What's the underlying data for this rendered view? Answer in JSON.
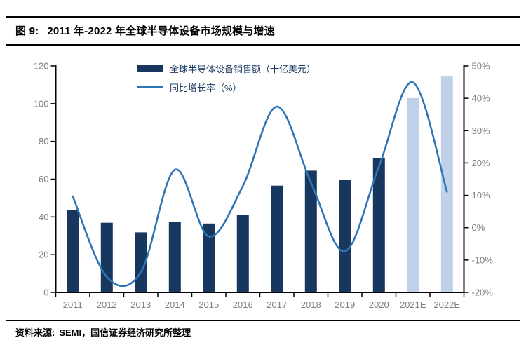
{
  "header": {
    "figure_label": "图 9:",
    "title": "2011 年-2022 年全球半导体设备市场规模与增速"
  },
  "legend": {
    "bar_label": "全球半导体设备销售额（十亿美元）",
    "line_label": "同比增长率（%）"
  },
  "footer": {
    "source_label": "资料来源:",
    "source_text": "SEMI，国信证券经济研究所整理"
  },
  "chart_data": {
    "type": "bar+line",
    "title": "2011 年-2022 年全球半导体设备市场规模与增速",
    "categories": [
      "2011",
      "2012",
      "2013",
      "2014",
      "2015",
      "2016",
      "2017",
      "2018",
      "2019",
      "2020",
      "2021E",
      "2022E"
    ],
    "series": [
      {
        "name": "全球半导体设备销售额（十亿美元）",
        "type": "bar",
        "axis": "left",
        "values": [
          43.5,
          36.9,
          31.8,
          37.5,
          36.5,
          41.2,
          56.6,
          64.5,
          59.8,
          71.1,
          103.0,
          114.4
        ],
        "estimate_flags": [
          false,
          false,
          false,
          false,
          false,
          false,
          false,
          false,
          false,
          false,
          true,
          true
        ]
      },
      {
        "name": "同比增长率（%）",
        "type": "line",
        "axis": "right",
        "values": [
          9.7,
          -15.2,
          -13.8,
          17.9,
          -2.7,
          12.9,
          37.4,
          14.0,
          -7.3,
          18.9,
          44.9,
          11.1
        ]
      }
    ],
    "left_axis": {
      "min": 0,
      "max": 120,
      "step": 20,
      "label_format": "number"
    },
    "right_axis": {
      "min": -20,
      "max": 50,
      "step": 10,
      "label_format": "percent"
    },
    "grid": false,
    "legend_position": "top-inside",
    "line_smooth": true,
    "colors": {
      "bar": "#17375E",
      "bar_estimate": "#C2D1EA",
      "line": "#2E75B6",
      "axis_line": "#000000",
      "axis_text": "#7F7F7F",
      "legend_text": "#17375E"
    }
  }
}
